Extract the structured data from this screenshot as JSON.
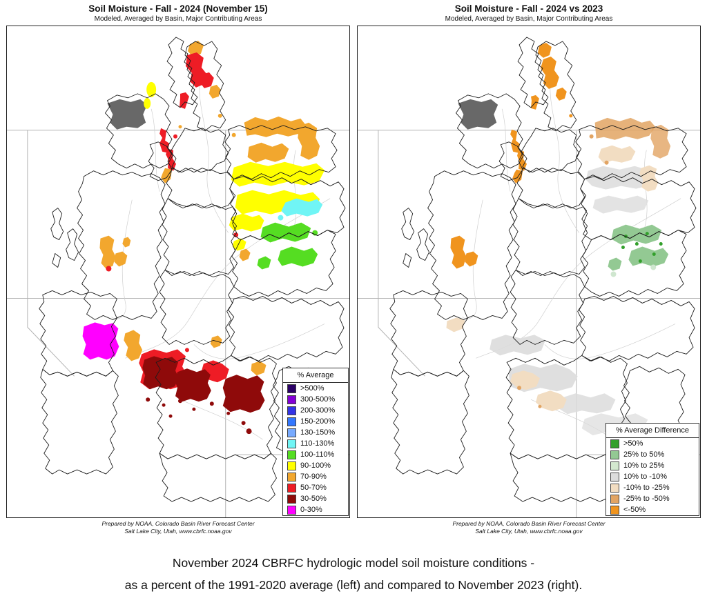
{
  "left_panel": {
    "title": "Soil Moisture - Fall - 2024 (November 15)",
    "subtitle": "Modeled, Averaged by Basin, Major Contributing Areas",
    "credit_line1": "Prepared by NOAA, Colorado Basin River Forecast Center",
    "credit_line2": "Salt Lake City, Utah, www.cbrfc.noaa.gov",
    "legend": {
      "title": "% Average",
      "items": [
        {
          "label": ">500%",
          "color": "#2b0066"
        },
        {
          "label": "300-500%",
          "color": "#8400d6"
        },
        {
          "label": "200-300%",
          "color": "#3333e6"
        },
        {
          "label": "150-200%",
          "color": "#3377ff"
        },
        {
          "label": "130-150%",
          "color": "#77aaff"
        },
        {
          "label": "110-130%",
          "color": "#70f5f5"
        },
        {
          "label": "100-110%",
          "color": "#55dd22"
        },
        {
          "label": "90-100%",
          "color": "#ffff00"
        },
        {
          "label": "70-90%",
          "color": "#f2a72e"
        },
        {
          "label": "50-70%",
          "color": "#ee1c25"
        },
        {
          "label": "30-50%",
          "color": "#8f0a0a"
        },
        {
          "label": "0-30%",
          "color": "#ff00ff"
        }
      ]
    }
  },
  "right_panel": {
    "title": "Soil Moisture - Fall - 2024 vs 2023",
    "subtitle": "Modeled, Averaged by Basin, Major Contributing Areas",
    "credit_line1": "Prepared by NOAA, Colorado Basin River Forecast Center",
    "credit_line2": "Salt Lake City, Utah, www.cbrfc.noaa.gov",
    "legend": {
      "title": "% Average Difference",
      "items": [
        {
          "label": ">50%",
          "color": "#33a02c"
        },
        {
          "label": "25% to 50%",
          "color": "#93c993"
        },
        {
          "label": "10% to 25%",
          "color": "#d3e8cf"
        },
        {
          "label": "10% to -10%",
          "color": "#dcdcdc"
        },
        {
          "label": "-10% to -25%",
          "color": "#f2ddc2"
        },
        {
          "label": "-25% to -50%",
          "color": "#e2a463"
        },
        {
          "label": "<-50%",
          "color": "#f0941e"
        }
      ]
    }
  },
  "caption": {
    "line1": "November 2024 CBRFC hydrologic model soil moisture conditions -",
    "line2": "as a percent of the 1991-2020 average (left) and compared to November 2023 (right)."
  }
}
